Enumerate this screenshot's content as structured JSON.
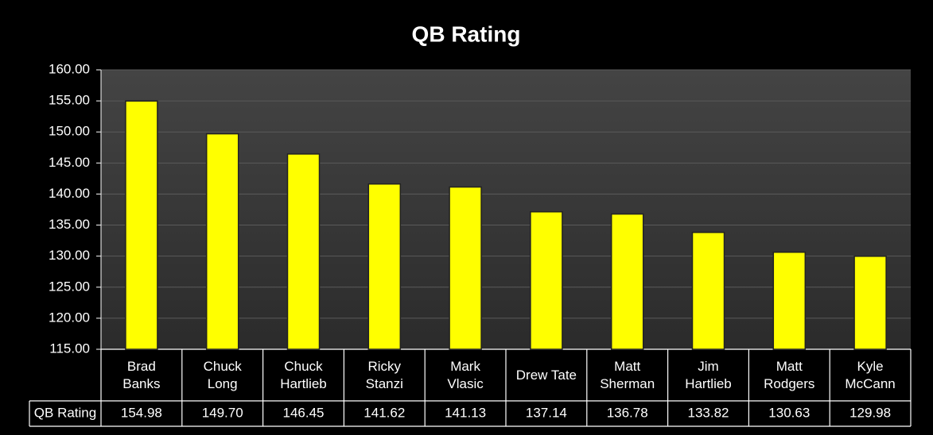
{
  "chart_data": {
    "type": "bar",
    "title": "QB Rating",
    "categories": [
      "Brad\nBanks",
      "Chuck\nLong",
      "Chuck\nHartlieb",
      "Ricky\nStanzi",
      "Mark\nVlasic",
      "Drew Tate",
      "Matt\nSherman",
      "Jim\nHartlieb",
      "Matt\nRodgers",
      "Kyle\nMcCann"
    ],
    "series": [
      {
        "name": "QB Rating",
        "color": "#ffff00",
        "values": [
          154.98,
          149.7,
          146.45,
          141.62,
          141.13,
          137.14,
          136.78,
          133.82,
          130.63,
          129.98
        ],
        "value_labels": [
          "154.98",
          "149.70",
          "146.45",
          "141.62",
          "141.13",
          "137.14",
          "136.78",
          "133.82",
          "130.63",
          "129.98"
        ]
      }
    ],
    "ylim": [
      115,
      160
    ],
    "yticks": [
      {
        "value": 115,
        "label": "115.00"
      },
      {
        "value": 120,
        "label": "120.00"
      },
      {
        "value": 125,
        "label": "125.00"
      },
      {
        "value": 130,
        "label": "130.00"
      },
      {
        "value": 135,
        "label": "135.00"
      },
      {
        "value": 140,
        "label": "140.00"
      },
      {
        "value": 145,
        "label": "145.00"
      },
      {
        "value": 150,
        "label": "150.00"
      },
      {
        "value": 155,
        "label": "155.00"
      },
      {
        "value": 160,
        "label": "160.00"
      }
    ],
    "grid": true
  }
}
